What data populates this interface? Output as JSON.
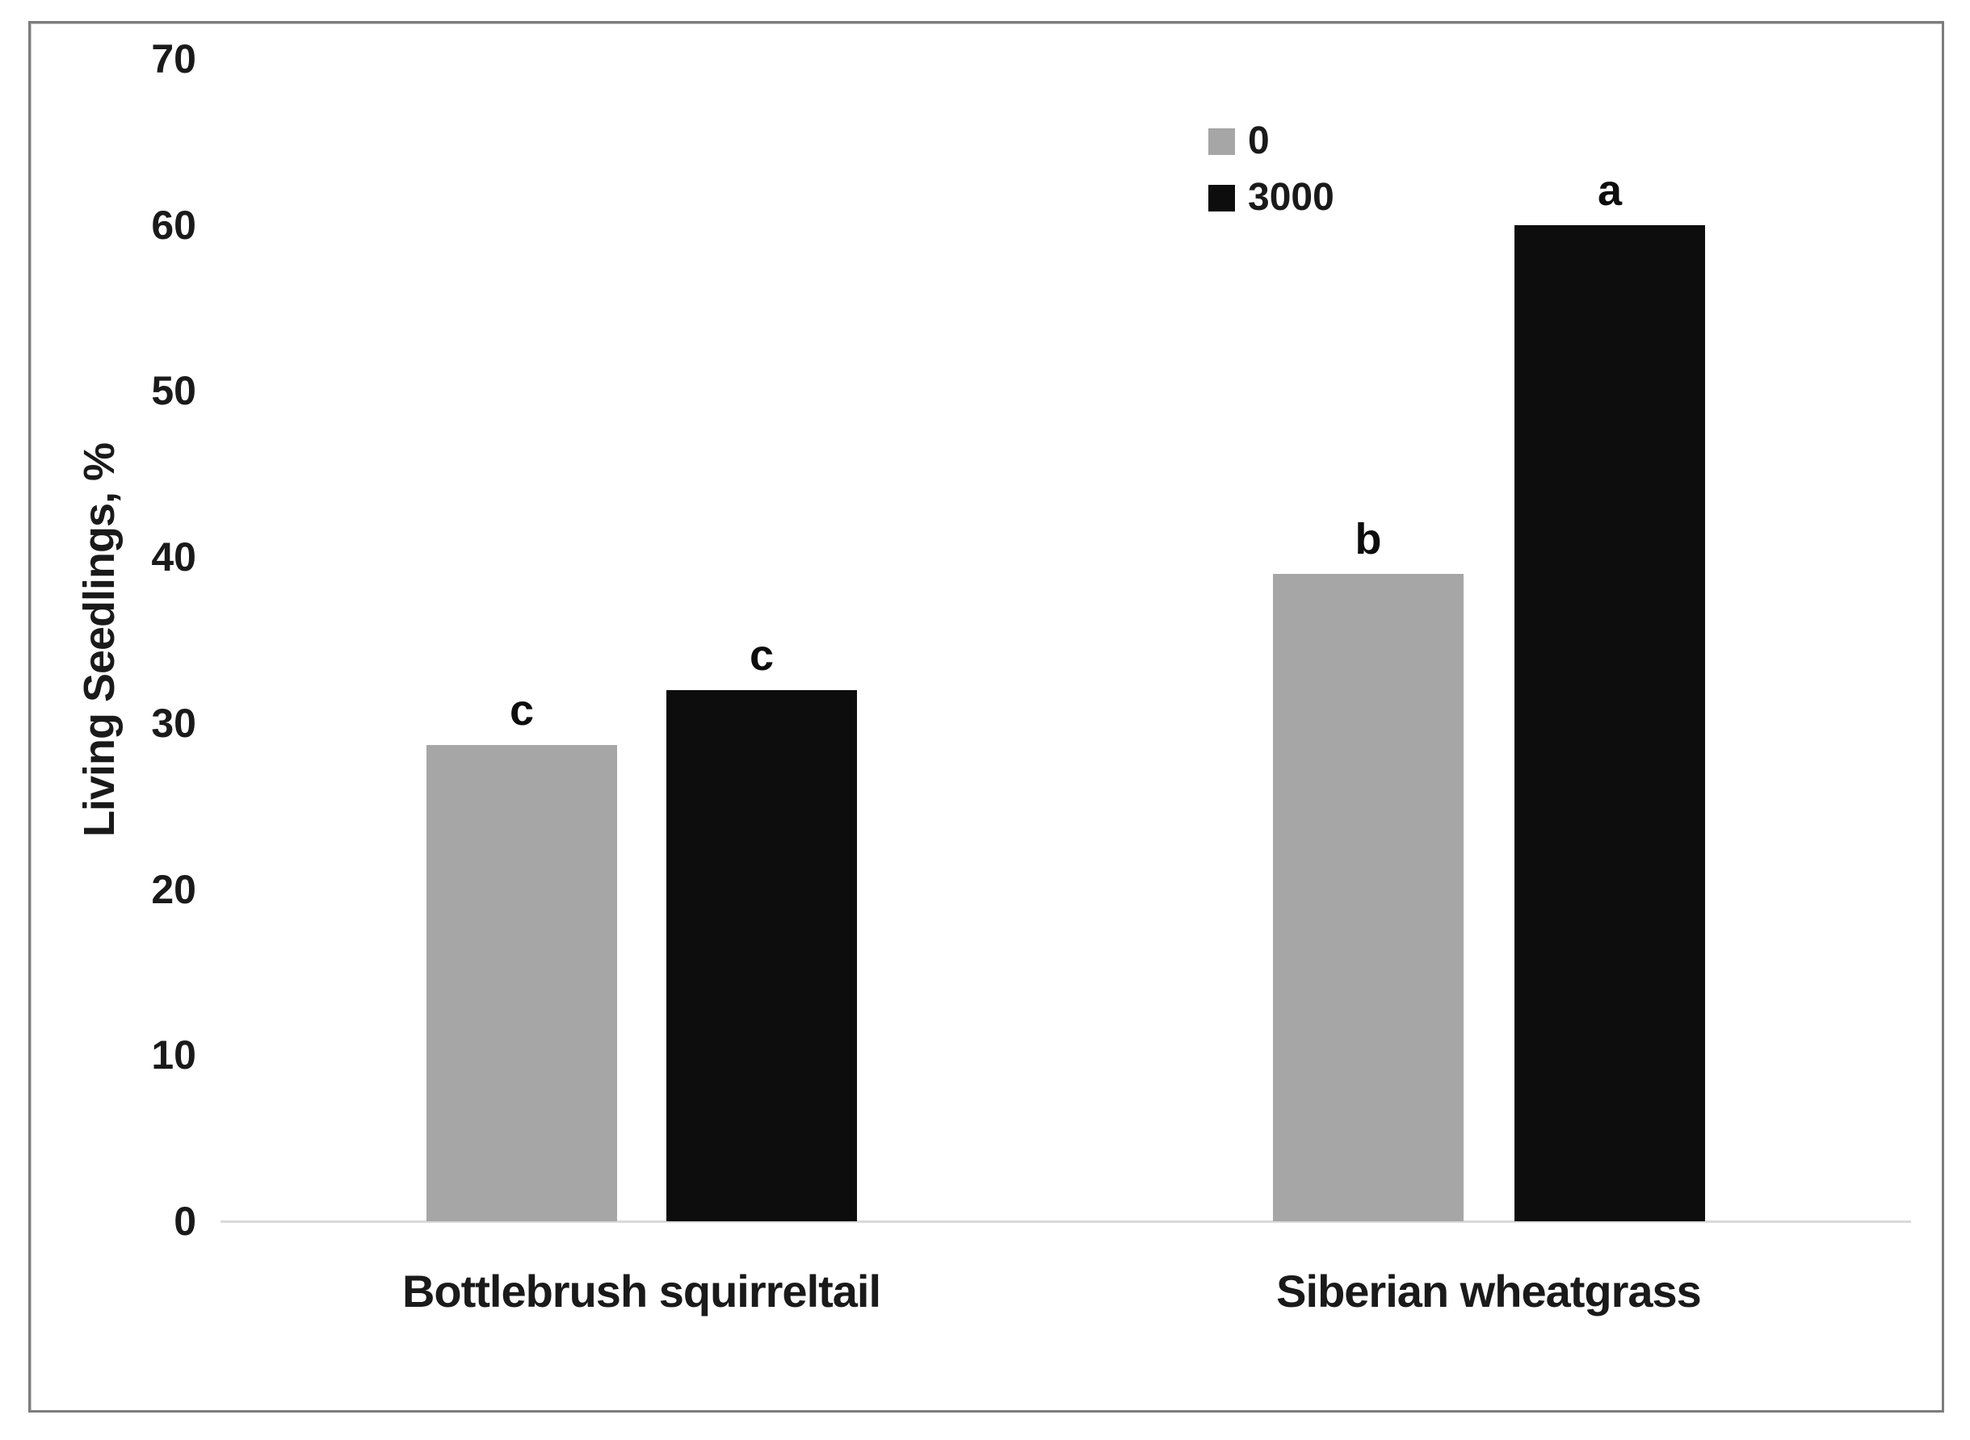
{
  "figure": {
    "border_color": "#7d7d7d",
    "background": "#ffffff"
  },
  "chart_data": {
    "type": "bar",
    "title": "",
    "xlabel": "",
    "ylabel": "Living Seedlings, %",
    "ylim": [
      0,
      70
    ],
    "yticks": [
      0,
      10,
      20,
      30,
      40,
      50,
      60,
      70
    ],
    "grid": false,
    "axis_line_color": "#d9d9d9",
    "categories": [
      "Bottlebrush squirreltail",
      "Siberian wheatgrass"
    ],
    "series": [
      {
        "name": "0",
        "color": "#a6a6a6",
        "values": [
          28.7,
          39
        ],
        "letters": [
          "c",
          "b"
        ]
      },
      {
        "name": "3000",
        "color": "#0d0d0d",
        "values": [
          32,
          60
        ],
        "letters": [
          "c",
          "a"
        ]
      }
    ],
    "legend_position": "top-center"
  }
}
